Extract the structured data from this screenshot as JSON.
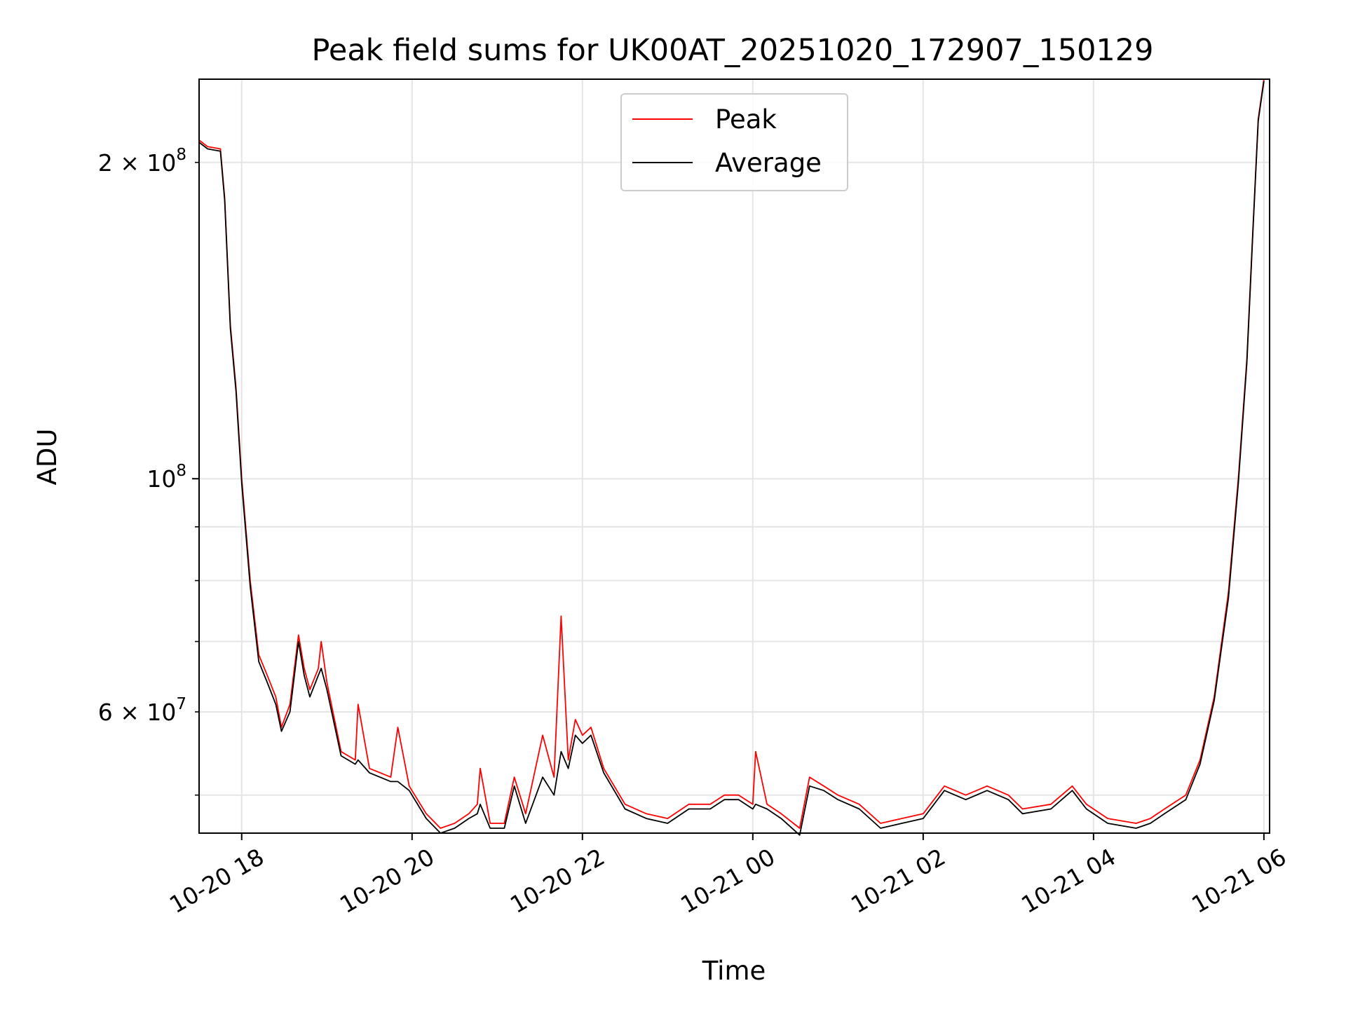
{
  "chart_data": {
    "type": "line",
    "title": "Peak field sums for UK00AT_20251020_172907_150129",
    "xlabel": "Time",
    "ylabel": "ADU",
    "x_unit": "time (MM-DD HH)",
    "xlim": [
      "10-20 17:30",
      "10-21 06:04"
    ],
    "xticks": [
      "10-20 18",
      "10-20 20",
      "10-20 22",
      "10-21 00",
      "10-21 02",
      "10-21 04",
      "10-21 06"
    ],
    "yscale": "log",
    "ylim": [
      46000000,
      240000000
    ],
    "yticks_major": [
      {
        "value": 100000000,
        "base": "10",
        "exp": "8"
      }
    ],
    "yticks_labeled_minor": [
      {
        "value": 60000000,
        "mant": "6",
        "base": "10",
        "exp": "7"
      },
      {
        "value": 200000000,
        "mant": "2",
        "base": "10",
        "exp": "8"
      }
    ],
    "yticks_minor": [
      50000000,
      60000000,
      70000000,
      80000000,
      90000000,
      200000000
    ],
    "grid": true,
    "legend_position": "top-center",
    "series": [
      {
        "name": "Peak",
        "color": "#ff0000",
        "points": [
          [
            "10-20 17:30",
            210000000
          ],
          [
            "10-20 17:36",
            207000000
          ],
          [
            "10-20 17:45",
            206000000
          ],
          [
            "10-20 17:48",
            185000000
          ],
          [
            "10-20 17:52",
            140000000
          ],
          [
            "10-20 17:56",
            122000000
          ],
          [
            "10-20 18:00",
            100000000
          ],
          [
            "10-20 18:06",
            80000000
          ],
          [
            "10-20 18:12",
            68000000
          ],
          [
            "10-20 18:18",
            65000000
          ],
          [
            "10-20 18:24",
            62000000
          ],
          [
            "10-20 18:28",
            58000000
          ],
          [
            "10-20 18:34",
            61000000
          ],
          [
            "10-20 18:40",
            71000000
          ],
          [
            "10-20 18:44",
            66000000
          ],
          [
            "10-20 18:48",
            63000000
          ],
          [
            "10-20 18:54",
            66000000
          ],
          [
            "10-20 18:56",
            70000000
          ],
          [
            "10-20 19:00",
            64000000
          ],
          [
            "10-20 19:10",
            55000000
          ],
          [
            "10-20 19:20",
            54000000
          ],
          [
            "10-20 19:22",
            61000000
          ],
          [
            "10-20 19:30",
            53000000
          ],
          [
            "10-20 19:45",
            52000000
          ],
          [
            "10-20 19:50",
            58000000
          ],
          [
            "10-20 19:58",
            51000000
          ],
          [
            "10-20 20:10",
            48000000
          ],
          [
            "10-20 20:20",
            46500000
          ],
          [
            "10-20 20:30",
            47000000
          ],
          [
            "10-20 20:40",
            48000000
          ],
          [
            "10-20 20:46",
            49000000
          ],
          [
            "10-20 20:48",
            53000000
          ],
          [
            "10-20 20:55",
            47000000
          ],
          [
            "10-20 21:05",
            47000000
          ],
          [
            "10-20 21:12",
            52000000
          ],
          [
            "10-20 21:20",
            48000000
          ],
          [
            "10-20 21:32",
            57000000
          ],
          [
            "10-20 21:40",
            52000000
          ],
          [
            "10-20 21:45",
            74000000
          ],
          [
            "10-20 21:50",
            54000000
          ],
          [
            "10-20 21:55",
            59000000
          ],
          [
            "10-20 22:00",
            57000000
          ],
          [
            "10-20 22:06",
            58000000
          ],
          [
            "10-20 22:15",
            53000000
          ],
          [
            "10-20 22:30",
            49000000
          ],
          [
            "10-20 22:45",
            48000000
          ],
          [
            "10-20 23:00",
            47500000
          ],
          [
            "10-20 23:15",
            49000000
          ],
          [
            "10-20 23:30",
            49000000
          ],
          [
            "10-20 23:40",
            50000000
          ],
          [
            "10-20 23:50",
            50000000
          ],
          [
            "10-21 00:00",
            49000000
          ],
          [
            "10-21 00:02",
            55000000
          ],
          [
            "10-21 00:10",
            49000000
          ],
          [
            "10-21 00:20",
            48000000
          ],
          [
            "10-21 00:33",
            46500000
          ],
          [
            "10-21 00:40",
            52000000
          ],
          [
            "10-21 00:50",
            51000000
          ],
          [
            "10-21 01:00",
            50000000
          ],
          [
            "10-21 01:15",
            49000000
          ],
          [
            "10-21 01:30",
            47000000
          ],
          [
            "10-21 01:45",
            47500000
          ],
          [
            "10-21 02:00",
            48000000
          ],
          [
            "10-21 02:15",
            51000000
          ],
          [
            "10-21 02:30",
            50000000
          ],
          [
            "10-21 02:45",
            51000000
          ],
          [
            "10-21 03:00",
            50000000
          ],
          [
            "10-21 03:10",
            48500000
          ],
          [
            "10-21 03:30",
            49000000
          ],
          [
            "10-21 03:45",
            51000000
          ],
          [
            "10-21 03:55",
            49000000
          ],
          [
            "10-21 04:10",
            47500000
          ],
          [
            "10-21 04:30",
            47000000
          ],
          [
            "10-21 04:40",
            47500000
          ],
          [
            "10-21 04:50",
            48500000
          ],
          [
            "10-21 05:05",
            50000000
          ],
          [
            "10-21 05:15",
            54000000
          ],
          [
            "10-21 05:25",
            62000000
          ],
          [
            "10-21 05:35",
            78000000
          ],
          [
            "10-21 05:42",
            100000000
          ],
          [
            "10-21 05:48",
            130000000
          ],
          [
            "10-21 05:52",
            170000000
          ],
          [
            "10-21 05:56",
            220000000
          ],
          [
            "10-21 06:00",
            240000000
          ]
        ]
      },
      {
        "name": "Average",
        "color": "#000000",
        "points": [
          [
            "10-20 17:30",
            209000000
          ],
          [
            "10-20 17:36",
            206000000
          ],
          [
            "10-20 17:45",
            205000000
          ],
          [
            "10-20 17:48",
            184000000
          ],
          [
            "10-20 17:52",
            139000000
          ],
          [
            "10-20 17:56",
            121000000
          ],
          [
            "10-20 18:00",
            99000000
          ],
          [
            "10-20 18:06",
            79000000
          ],
          [
            "10-20 18:12",
            67000000
          ],
          [
            "10-20 18:18",
            64000000
          ],
          [
            "10-20 18:24",
            61000000
          ],
          [
            "10-20 18:28",
            57500000
          ],
          [
            "10-20 18:34",
            60000000
          ],
          [
            "10-20 18:40",
            70000000
          ],
          [
            "10-20 18:44",
            65000000
          ],
          [
            "10-20 18:48",
            62000000
          ],
          [
            "10-20 18:54",
            65000000
          ],
          [
            "10-20 18:56",
            66000000
          ],
          [
            "10-20 19:00",
            63000000
          ],
          [
            "10-20 19:10",
            54500000
          ],
          [
            "10-20 19:20",
            53500000
          ],
          [
            "10-20 19:22",
            54000000
          ],
          [
            "10-20 19:30",
            52500000
          ],
          [
            "10-20 19:45",
            51500000
          ],
          [
            "10-20 19:50",
            51500000
          ],
          [
            "10-20 19:58",
            50500000
          ],
          [
            "10-20 20:10",
            47500000
          ],
          [
            "10-20 20:20",
            46000000
          ],
          [
            "10-20 20:30",
            46500000
          ],
          [
            "10-20 20:40",
            47500000
          ],
          [
            "10-20 20:46",
            48000000
          ],
          [
            "10-20 20:48",
            49000000
          ],
          [
            "10-20 20:55",
            46500000
          ],
          [
            "10-20 21:05",
            46500000
          ],
          [
            "10-20 21:12",
            51000000
          ],
          [
            "10-20 21:20",
            47000000
          ],
          [
            "10-20 21:32",
            52000000
          ],
          [
            "10-20 21:40",
            50000000
          ],
          [
            "10-20 21:45",
            55000000
          ],
          [
            "10-20 21:50",
            53000000
          ],
          [
            "10-20 21:55",
            57000000
          ],
          [
            "10-20 22:00",
            56000000
          ],
          [
            "10-20 22:06",
            57000000
          ],
          [
            "10-20 22:15",
            52500000
          ],
          [
            "10-20 22:30",
            48500000
          ],
          [
            "10-20 22:45",
            47500000
          ],
          [
            "10-20 23:00",
            47000000
          ],
          [
            "10-20 23:15",
            48500000
          ],
          [
            "10-20 23:30",
            48500000
          ],
          [
            "10-20 23:40",
            49500000
          ],
          [
            "10-20 23:50",
            49500000
          ],
          [
            "10-21 00:00",
            48500000
          ],
          [
            "10-21 00:02",
            49000000
          ],
          [
            "10-21 00:10",
            48500000
          ],
          [
            "10-21 00:20",
            47500000
          ],
          [
            "10-21 00:33",
            45800000
          ],
          [
            "10-21 00:40",
            51000000
          ],
          [
            "10-21 00:50",
            50500000
          ],
          [
            "10-21 01:00",
            49500000
          ],
          [
            "10-21 01:15",
            48500000
          ],
          [
            "10-21 01:30",
            46500000
          ],
          [
            "10-21 01:45",
            47000000
          ],
          [
            "10-21 02:00",
            47500000
          ],
          [
            "10-21 02:15",
            50500000
          ],
          [
            "10-21 02:30",
            49500000
          ],
          [
            "10-21 02:45",
            50500000
          ],
          [
            "10-21 03:00",
            49500000
          ],
          [
            "10-21 03:10",
            48000000
          ],
          [
            "10-21 03:30",
            48500000
          ],
          [
            "10-21 03:45",
            50500000
          ],
          [
            "10-21 03:55",
            48500000
          ],
          [
            "10-21 04:10",
            47000000
          ],
          [
            "10-21 04:30",
            46500000
          ],
          [
            "10-21 04:40",
            47000000
          ],
          [
            "10-21 04:50",
            48000000
          ],
          [
            "10-21 05:05",
            49500000
          ],
          [
            "10-21 05:15",
            53500000
          ],
          [
            "10-21 05:25",
            61500000
          ],
          [
            "10-21 05:35",
            77000000
          ],
          [
            "10-21 05:42",
            99000000
          ],
          [
            "10-21 05:48",
            129000000
          ],
          [
            "10-21 05:52",
            169000000
          ],
          [
            "10-21 05:56",
            219000000
          ],
          [
            "10-21 06:00",
            239000000
          ]
        ]
      }
    ]
  }
}
